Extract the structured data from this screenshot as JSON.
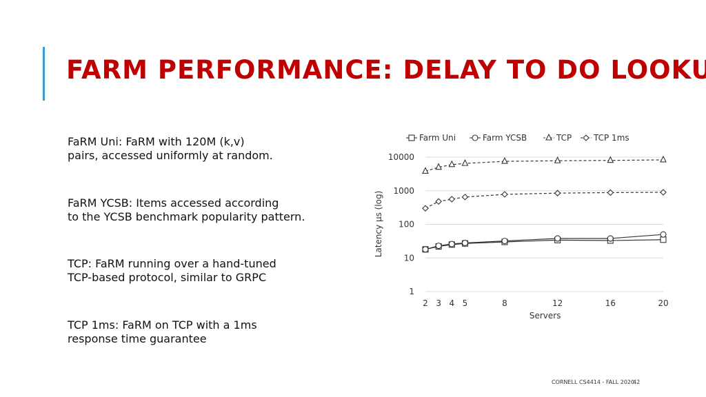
{
  "slide": {
    "title": "FARM PERFORMANCE: DELAY TO DO LOOKUP",
    "descriptions": [
      {
        "line1": "FaRM Uni:  FaRM with 120M (k,v)",
        "line2": "pairs, accessed uniformly at random."
      },
      {
        "line1": "FaRM YCSB:  Items accessed according",
        "line2": "to the YCSB benchmark popularity pattern."
      },
      {
        "line1": "TCP:  FaRM running over a hand-tuned",
        "line2": "TCP-based protocol, similar to GRPC"
      },
      {
        "line1": "TCP 1ms:  FaRM on TCP with a 1ms",
        "line2": "response time guarantee"
      }
    ],
    "footer": {
      "course": "CORNELL CS4414 - FALL 2020.",
      "page": "42"
    },
    "accent_color": "#3a9ad9",
    "title_color": "#c00000"
  },
  "chart_data": {
    "type": "line",
    "xlabel": "Servers",
    "ylabel": "Latency µs (log)",
    "x": [
      2,
      3,
      4,
      5,
      8,
      12,
      16,
      20
    ],
    "x_ticks": [
      "2",
      "3",
      "4",
      "5",
      "8",
      "12",
      "16",
      "20"
    ],
    "y_scale": "log",
    "ylim": [
      1,
      10000
    ],
    "y_ticks": [
      "1",
      "10",
      "100",
      "1000",
      "10000"
    ],
    "grid": true,
    "legend_position": "top",
    "series": [
      {
        "name": "Farm Uni",
        "marker": "square",
        "dash": false,
        "values": [
          18,
          22,
          25,
          27,
          30,
          34,
          33,
          35
        ]
      },
      {
        "name": "Farm YCSB",
        "marker": "circle",
        "dash": false,
        "values": [
          18,
          23,
          26,
          28,
          32,
          38,
          38,
          50
        ]
      },
      {
        "name": "TCP",
        "marker": "triangle",
        "dash": true,
        "values": [
          3800,
          5000,
          6000,
          6500,
          7500,
          7800,
          8000,
          8300
        ]
      },
      {
        "name": "TCP 1ms",
        "marker": "diamond",
        "dash": true,
        "values": [
          300,
          480,
          560,
          650,
          780,
          850,
          880,
          900
        ]
      }
    ]
  }
}
